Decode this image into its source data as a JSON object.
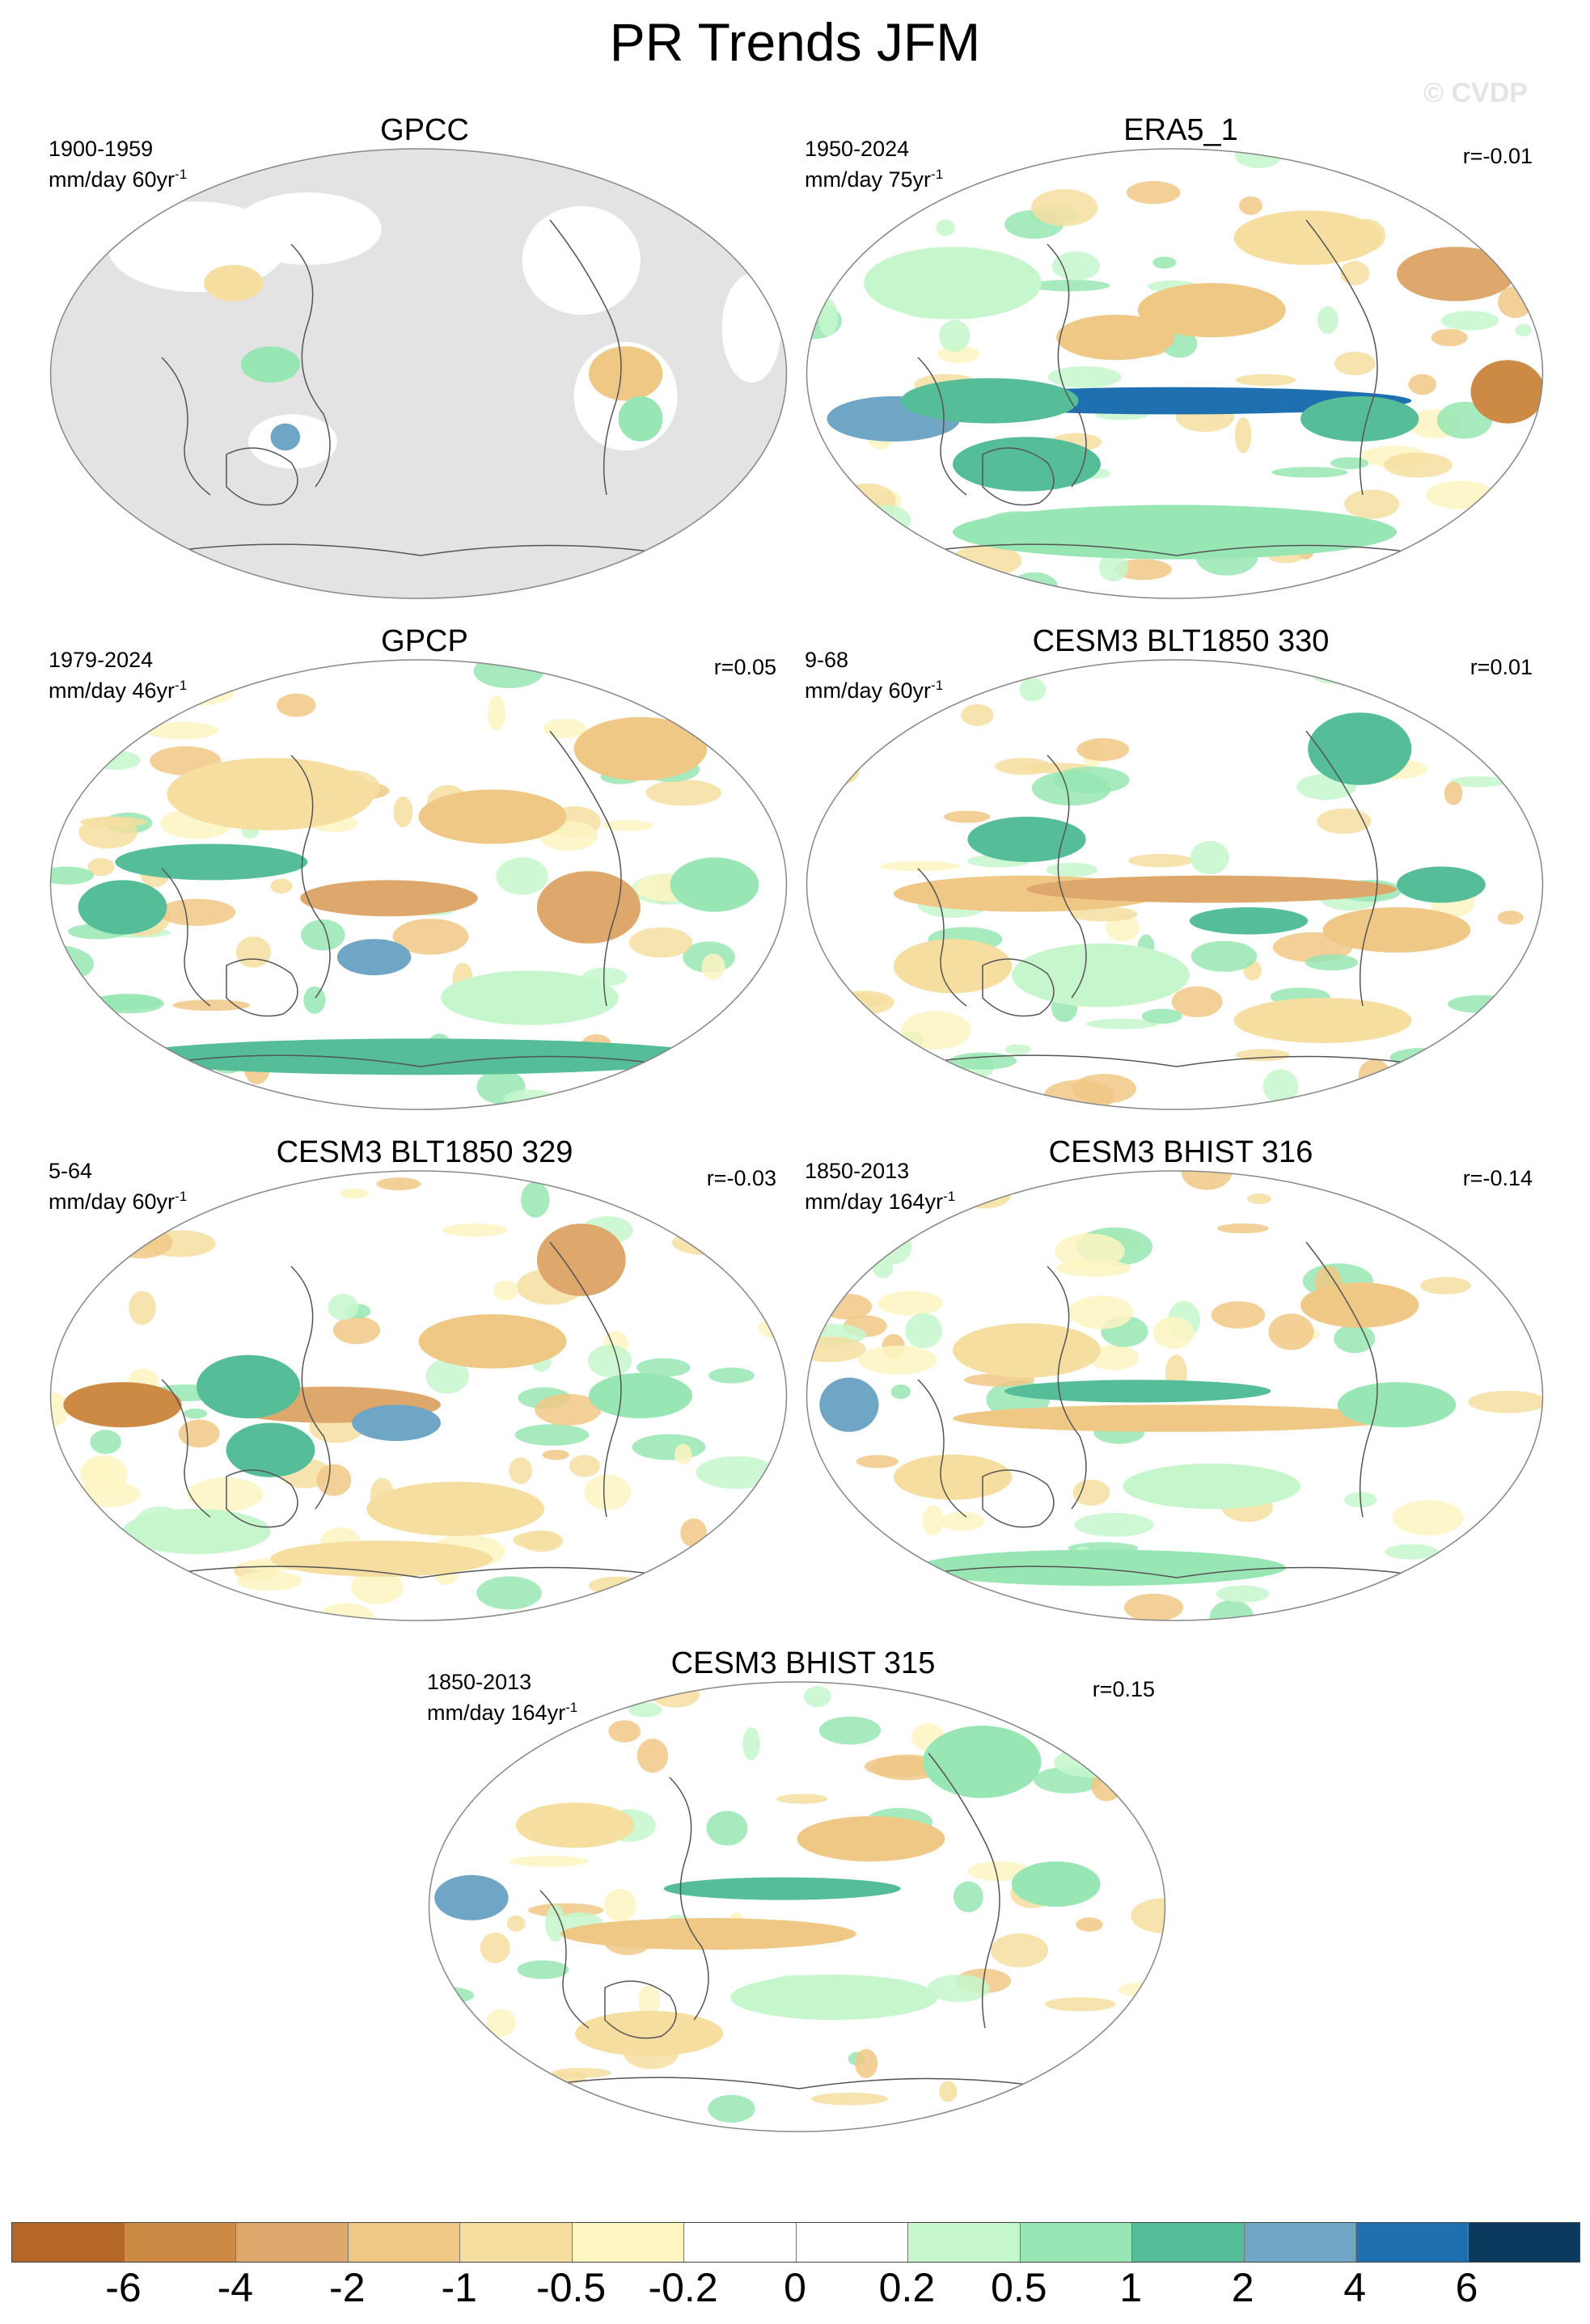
{
  "title": "PR Trends JFM",
  "credit": "© CVDP",
  "panels": [
    {
      "title": "GPCC",
      "years": "1900-1959",
      "units_prefix": "mm/day 60yr",
      "units_sup": "-1",
      "r": "",
      "variant": "land"
    },
    {
      "title": "ERA5_1",
      "years": "1950-2024",
      "units_prefix": "mm/day 75yr",
      "units_sup": "-1",
      "r": "r=-0.01",
      "variant": "era5"
    },
    {
      "title": "GPCP",
      "years": "1979-2024",
      "units_prefix": "mm/day 46yr",
      "units_sup": "-1",
      "r": "r=0.05",
      "variant": "gpcp"
    },
    {
      "title": "CESM3 BLT1850 330",
      "years": "9-68",
      "units_prefix": "mm/day 60yr",
      "units_sup": "-1",
      "r": "r=0.01",
      "variant": "blt330"
    },
    {
      "title": "CESM3 BLT1850 329",
      "years": "5-64",
      "units_prefix": "mm/day 60yr",
      "units_sup": "-1",
      "r": "r=-0.03",
      "variant": "blt329"
    },
    {
      "title": "CESM3 BHIST 316",
      "years": "1850-2013",
      "units_prefix": "mm/day 164yr",
      "units_sup": "-1",
      "r": "r=-0.14",
      "variant": "bhist316"
    },
    {
      "title": "CESM3 BHIST 315",
      "years": "1850-2013",
      "units_prefix": "mm/day 164yr",
      "units_sup": "-1",
      "r": "r=0.15",
      "variant": "bhist315"
    }
  ],
  "colorbar": {
    "colors": [
      "#b5672a",
      "#cd8a45",
      "#dea76b",
      "#f0c886",
      "#f5dea0",
      "#fdf5c2",
      "#ffffff",
      "#ffffff",
      "#c6f7cc",
      "#97e6b3",
      "#55bd98",
      "#6fa6c6",
      "#1f70b0",
      "#0b3a5e"
    ],
    "labels": [
      "-6",
      "-4",
      "-2",
      "-1",
      "-0.5",
      "-0.2",
      "0",
      "0.2",
      "0.5",
      "1",
      "2",
      "4",
      "6"
    ],
    "colors_named": {
      "negative_strong": "#b5672a",
      "positive_strong": "#0b3a5e"
    }
  }
}
